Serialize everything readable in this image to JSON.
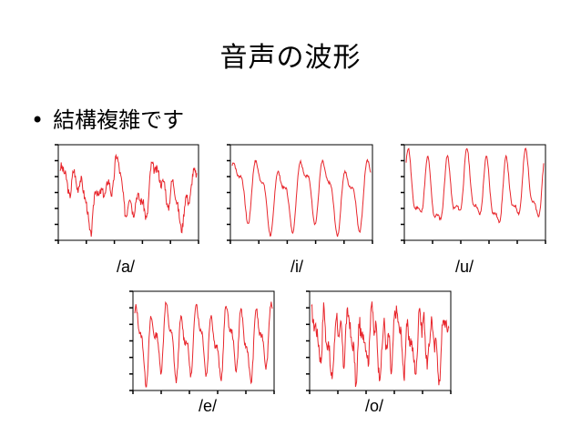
{
  "title": "音声の波形",
  "bullet": {
    "symbol": "•",
    "text": "結構複雑です"
  },
  "waveforms": [
    {
      "label": "/a/"
    },
    {
      "label": "/i/"
    },
    {
      "label": "/u/"
    },
    {
      "label": "/e/"
    },
    {
      "label": "/o/"
    }
  ],
  "colors": {
    "wave": "#e8262c",
    "axis": "#000000"
  }
}
